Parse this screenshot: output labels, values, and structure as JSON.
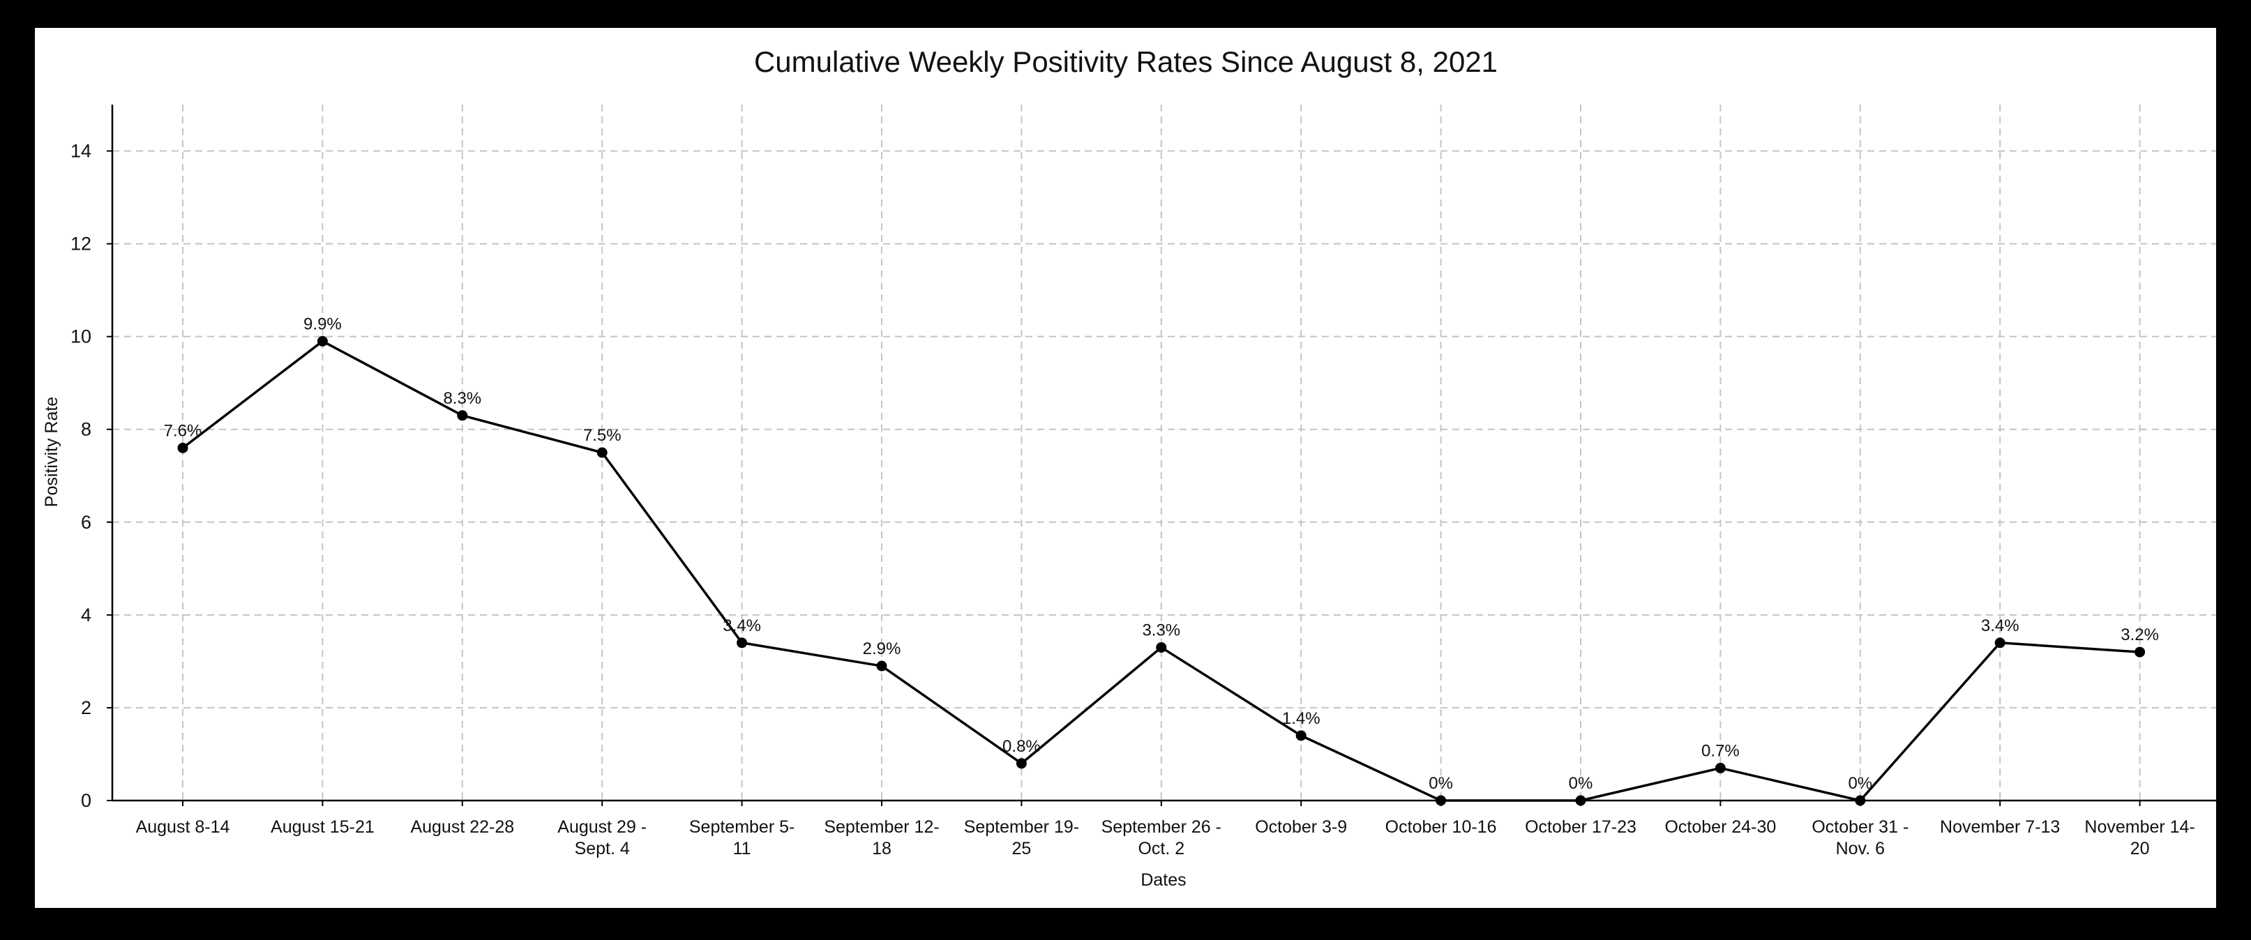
{
  "chart_data": {
    "type": "line",
    "title": "Cumulative Weekly Positivity Rates Since August 8, 2021",
    "xlabel": "Dates",
    "ylabel": "Positivity Rate",
    "ylim": [
      0,
      15
    ],
    "yticks": [
      "0",
      "2",
      "4",
      "6",
      "8",
      "10",
      "12",
      "14"
    ],
    "grid": true,
    "categories": [
      [
        "August 8-14"
      ],
      [
        "August 15-21"
      ],
      [
        "August 22-28"
      ],
      [
        "August 29 -",
        "Sept. 4"
      ],
      [
        "September 5-",
        "11"
      ],
      [
        "September 12-",
        "18"
      ],
      [
        "September 19-",
        "25"
      ],
      [
        "September 26 -",
        "Oct. 2"
      ],
      [
        "October 3-9"
      ],
      [
        "October 10-16"
      ],
      [
        "October 17-23"
      ],
      [
        "October 24-30"
      ],
      [
        "October 31 -",
        "Nov. 6"
      ],
      [
        "November 7-13"
      ],
      [
        "November 14-",
        "20"
      ]
    ],
    "series": [
      {
        "values": [
          7.6,
          9.9,
          8.3,
          7.5,
          3.4,
          2.9,
          0.8,
          3.3,
          1.4,
          0,
          0,
          0.7,
          0,
          3.4,
          3.2
        ],
        "labels": [
          "7.6%",
          "9.9%",
          "8.3%",
          "7.5%",
          "3.4%",
          "2.9%",
          "0.8%",
          "3.3%",
          "1.4%",
          "0%",
          "0%",
          "0.7%",
          "0%",
          "3.4%",
          "3.2%"
        ],
        "color": "#000000"
      }
    ],
    "colors": {
      "grid": "#c4c4c4",
      "axis": "#000000",
      "frame": "#000000",
      "background": "#ffffff"
    }
  }
}
